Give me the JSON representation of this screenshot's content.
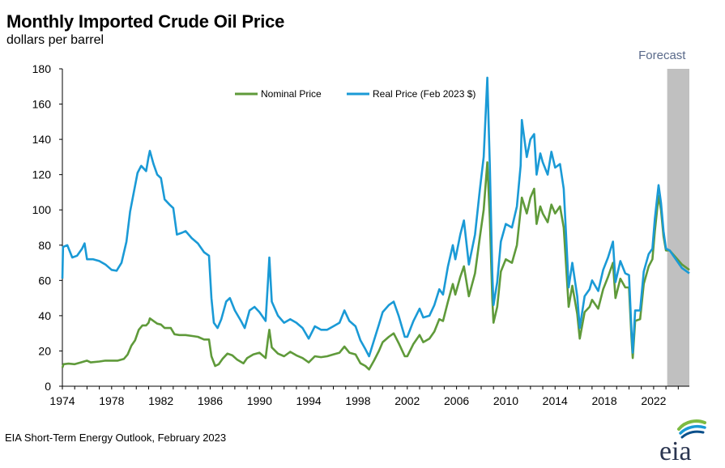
{
  "title": "Monthly Imported Crude Oil Price",
  "subtitle": "dollars per barrel",
  "source": "EIA Short-Term Energy Outlook, February 2023",
  "logo_text": "eia",
  "colors": {
    "nominal": "#5f9a3a",
    "real": "#1a9ad6",
    "forecast_band": "#c0c0c0",
    "axis": "#000000"
  },
  "chart_data": {
    "type": "line",
    "title": "Monthly Imported Crude Oil Price",
    "ylabel": "dollars per barrel",
    "xlabel": "",
    "xlim": [
      1974,
      2024.9
    ],
    "ylim": [
      0,
      180
    ],
    "yticks": [
      0,
      20,
      40,
      60,
      80,
      100,
      120,
      140,
      160,
      180
    ],
    "xticks": [
      1974,
      1978,
      1982,
      1986,
      1990,
      1994,
      1998,
      2002,
      2006,
      2010,
      2014,
      2018,
      2022
    ],
    "grid": false,
    "legend_position": "top-center",
    "forecast": {
      "label": "Forecast",
      "start": 2023.1,
      "end": 2024.9
    },
    "series": [
      {
        "name": "Nominal Price",
        "color": "#5f9a3a",
        "points": [
          [
            1974.0,
            10.5
          ],
          [
            1974.1,
            12.5
          ],
          [
            1974.5,
            12.8
          ],
          [
            1975.0,
            12.5
          ],
          [
            1975.5,
            13.5
          ],
          [
            1976.0,
            14.5
          ],
          [
            1976.3,
            13.5
          ],
          [
            1977.0,
            14.0
          ],
          [
            1977.5,
            14.5
          ],
          [
            1978.0,
            14.5
          ],
          [
            1978.5,
            14.5
          ],
          [
            1979.0,
            15.5
          ],
          [
            1979.3,
            18.0
          ],
          [
            1979.6,
            23.0
          ],
          [
            1979.9,
            26.0
          ],
          [
            1980.2,
            32.0
          ],
          [
            1980.5,
            34.5
          ],
          [
            1980.8,
            34.5
          ],
          [
            1981.0,
            36.0
          ],
          [
            1981.1,
            38.5
          ],
          [
            1981.4,
            37.0
          ],
          [
            1981.7,
            35.5
          ],
          [
            1982.0,
            35.0
          ],
          [
            1982.3,
            33.0
          ],
          [
            1982.8,
            33.0
          ],
          [
            1983.1,
            29.5
          ],
          [
            1983.5,
            29.0
          ],
          [
            1984.0,
            29.0
          ],
          [
            1984.5,
            28.5
          ],
          [
            1985.0,
            28.0
          ],
          [
            1985.5,
            26.5
          ],
          [
            1985.9,
            26.5
          ],
          [
            1986.1,
            17.0
          ],
          [
            1986.4,
            11.5
          ],
          [
            1986.7,
            12.5
          ],
          [
            1987.0,
            15.5
          ],
          [
            1987.4,
            18.5
          ],
          [
            1987.8,
            17.5
          ],
          [
            1988.2,
            15.0
          ],
          [
            1988.7,
            13.0
          ],
          [
            1989.0,
            16.0
          ],
          [
            1989.5,
            18.0
          ],
          [
            1990.0,
            19.0
          ],
          [
            1990.5,
            16.0
          ],
          [
            1990.7,
            27.0
          ],
          [
            1990.8,
            32.0
          ],
          [
            1991.0,
            22.0
          ],
          [
            1991.5,
            18.5
          ],
          [
            1992.0,
            17.0
          ],
          [
            1992.5,
            19.5
          ],
          [
            1993.0,
            17.5
          ],
          [
            1993.5,
            16.0
          ],
          [
            1994.0,
            13.5
          ],
          [
            1994.5,
            17.0
          ],
          [
            1995.0,
            16.5
          ],
          [
            1995.5,
            17.0
          ],
          [
            1996.0,
            18.0
          ],
          [
            1996.5,
            19.0
          ],
          [
            1996.9,
            22.5
          ],
          [
            1997.3,
            19.0
          ],
          [
            1997.8,
            18.0
          ],
          [
            1998.2,
            13.0
          ],
          [
            1998.6,
            11.5
          ],
          [
            1998.9,
            9.5
          ],
          [
            1999.3,
            14.5
          ],
          [
            1999.7,
            20.0
          ],
          [
            2000.0,
            25.0
          ],
          [
            2000.5,
            28.0
          ],
          [
            2000.9,
            30.0
          ],
          [
            2001.3,
            24.5
          ],
          [
            2001.8,
            17.0
          ],
          [
            2002.0,
            17.0
          ],
          [
            2002.5,
            24.0
          ],
          [
            2003.0,
            29.0
          ],
          [
            2003.3,
            25.0
          ],
          [
            2003.8,
            27.0
          ],
          [
            2004.2,
            31.0
          ],
          [
            2004.6,
            38.0
          ],
          [
            2004.9,
            37.0
          ],
          [
            2005.3,
            48.0
          ],
          [
            2005.7,
            58.0
          ],
          [
            2005.9,
            52.0
          ],
          [
            2006.3,
            62.0
          ],
          [
            2006.6,
            68.0
          ],
          [
            2007.0,
            51.0
          ],
          [
            2007.5,
            64.0
          ],
          [
            2007.9,
            85.0
          ],
          [
            2008.2,
            100.0
          ],
          [
            2008.5,
            127.0
          ],
          [
            2008.7,
            95.0
          ],
          [
            2008.9,
            50.0
          ],
          [
            2009.0,
            36.0
          ],
          [
            2009.3,
            45.0
          ],
          [
            2009.6,
            65.0
          ],
          [
            2010.0,
            72.0
          ],
          [
            2010.5,
            70.0
          ],
          [
            2010.9,
            80.0
          ],
          [
            2011.2,
            100.0
          ],
          [
            2011.3,
            107.0
          ],
          [
            2011.7,
            98.0
          ],
          [
            2012.0,
            107.0
          ],
          [
            2012.3,
            112.0
          ],
          [
            2012.5,
            92.0
          ],
          [
            2012.8,
            102.0
          ],
          [
            2013.0,
            98.0
          ],
          [
            2013.4,
            93.0
          ],
          [
            2013.7,
            103.0
          ],
          [
            2014.0,
            98.0
          ],
          [
            2014.4,
            102.0
          ],
          [
            2014.7,
            90.0
          ],
          [
            2014.9,
            68.0
          ],
          [
            2015.1,
            45.0
          ],
          [
            2015.4,
            57.0
          ],
          [
            2015.8,
            41.0
          ],
          [
            2016.0,
            27.0
          ],
          [
            2016.4,
            42.0
          ],
          [
            2016.8,
            45.0
          ],
          [
            2017.0,
            49.0
          ],
          [
            2017.5,
            44.0
          ],
          [
            2017.9,
            55.0
          ],
          [
            2018.3,
            62.0
          ],
          [
            2018.7,
            70.0
          ],
          [
            2018.9,
            50.0
          ],
          [
            2019.3,
            61.0
          ],
          [
            2019.7,
            56.0
          ],
          [
            2020.0,
            56.0
          ],
          [
            2020.2,
            28.0
          ],
          [
            2020.3,
            16.0
          ],
          [
            2020.5,
            37.0
          ],
          [
            2020.9,
            38.0
          ],
          [
            2021.2,
            58.0
          ],
          [
            2021.6,
            68.0
          ],
          [
            2021.9,
            72.0
          ],
          [
            2022.1,
            88.0
          ],
          [
            2022.4,
            108.0
          ],
          [
            2022.6,
            100.0
          ],
          [
            2022.8,
            85.0
          ],
          [
            2023.0,
            77.0
          ],
          [
            2023.3,
            77.0
          ],
          [
            2023.8,
            73.0
          ],
          [
            2024.3,
            69.0
          ],
          [
            2024.9,
            66.0
          ]
        ]
      },
      {
        "name": "Real Price (Feb 2023 $)",
        "color": "#1a9ad6",
        "points": [
          [
            1974.0,
            61.0
          ],
          [
            1974.05,
            79.0
          ],
          [
            1974.4,
            80.0
          ],
          [
            1974.8,
            73.0
          ],
          [
            1975.2,
            74.0
          ],
          [
            1975.6,
            78.0
          ],
          [
            1975.8,
            81.0
          ],
          [
            1976.0,
            72.0
          ],
          [
            1976.5,
            72.0
          ],
          [
            1977.0,
            71.0
          ],
          [
            1977.5,
            69.0
          ],
          [
            1978.0,
            66.0
          ],
          [
            1978.4,
            65.5
          ],
          [
            1978.8,
            70.0
          ],
          [
            1979.2,
            82.0
          ],
          [
            1979.5,
            99.0
          ],
          [
            1979.8,
            110.0
          ],
          [
            1980.1,
            121.0
          ],
          [
            1980.4,
            125.0
          ],
          [
            1980.8,
            122.0
          ],
          [
            1981.0,
            130.0
          ],
          [
            1981.1,
            133.5
          ],
          [
            1981.4,
            126.0
          ],
          [
            1981.7,
            120.0
          ],
          [
            1982.0,
            118.0
          ],
          [
            1982.3,
            106.0
          ],
          [
            1982.7,
            103.0
          ],
          [
            1983.0,
            101.0
          ],
          [
            1983.3,
            86.0
          ],
          [
            1983.7,
            87.0
          ],
          [
            1984.0,
            88.0
          ],
          [
            1984.5,
            84.0
          ],
          [
            1985.0,
            81.0
          ],
          [
            1985.5,
            76.0
          ],
          [
            1985.9,
            74.0
          ],
          [
            1986.1,
            50.0
          ],
          [
            1986.3,
            36.0
          ],
          [
            1986.6,
            33.0
          ],
          [
            1986.9,
            38.0
          ],
          [
            1987.3,
            48.0
          ],
          [
            1987.6,
            50.0
          ],
          [
            1988.0,
            43.0
          ],
          [
            1988.5,
            37.0
          ],
          [
            1988.8,
            33.0
          ],
          [
            1989.2,
            43.0
          ],
          [
            1989.6,
            45.0
          ],
          [
            1990.0,
            42.0
          ],
          [
            1990.5,
            37.0
          ],
          [
            1990.7,
            60.0
          ],
          [
            1990.8,
            73.0
          ],
          [
            1991.0,
            48.0
          ],
          [
            1991.5,
            40.0
          ],
          [
            1992.0,
            36.0
          ],
          [
            1992.5,
            38.0
          ],
          [
            1993.0,
            36.0
          ],
          [
            1993.5,
            33.0
          ],
          [
            1994.0,
            27.0
          ],
          [
            1994.5,
            34.0
          ],
          [
            1995.0,
            32.0
          ],
          [
            1995.5,
            32.0
          ],
          [
            1996.0,
            34.0
          ],
          [
            1996.5,
            36.0
          ],
          [
            1996.9,
            43.0
          ],
          [
            1997.3,
            37.0
          ],
          [
            1997.8,
            34.0
          ],
          [
            1998.2,
            26.0
          ],
          [
            1998.6,
            21.0
          ],
          [
            1998.9,
            17.0
          ],
          [
            1999.3,
            26.0
          ],
          [
            1999.7,
            35.0
          ],
          [
            2000.0,
            42.0
          ],
          [
            2000.5,
            46.0
          ],
          [
            2000.9,
            48.0
          ],
          [
            2001.3,
            40.0
          ],
          [
            2001.8,
            28.0
          ],
          [
            2002.0,
            28.0
          ],
          [
            2002.5,
            37.0
          ],
          [
            2003.0,
            44.0
          ],
          [
            2003.3,
            39.0
          ],
          [
            2003.8,
            40.0
          ],
          [
            2004.2,
            46.0
          ],
          [
            2004.6,
            55.0
          ],
          [
            2004.9,
            52.0
          ],
          [
            2005.3,
            68.0
          ],
          [
            2005.7,
            80.0
          ],
          [
            2005.9,
            72.0
          ],
          [
            2006.3,
            86.0
          ],
          [
            2006.6,
            94.0
          ],
          [
            2007.0,
            69.0
          ],
          [
            2007.5,
            86.0
          ],
          [
            2007.9,
            112.0
          ],
          [
            2008.2,
            130.0
          ],
          [
            2008.5,
            175.0
          ],
          [
            2008.7,
            125.0
          ],
          [
            2008.9,
            64.0
          ],
          [
            2009.0,
            46.0
          ],
          [
            2009.3,
            59.0
          ],
          [
            2009.6,
            82.0
          ],
          [
            2010.0,
            92.0
          ],
          [
            2010.5,
            90.0
          ],
          [
            2010.9,
            102.0
          ],
          [
            2011.2,
            125.0
          ],
          [
            2011.3,
            151.0
          ],
          [
            2011.7,
            130.0
          ],
          [
            2012.0,
            140.0
          ],
          [
            2012.3,
            143.0
          ],
          [
            2012.5,
            120.0
          ],
          [
            2012.8,
            132.0
          ],
          [
            2013.0,
            127.0
          ],
          [
            2013.4,
            120.0
          ],
          [
            2013.7,
            133.0
          ],
          [
            2014.0,
            124.0
          ],
          [
            2014.4,
            126.0
          ],
          [
            2014.7,
            112.0
          ],
          [
            2014.9,
            85.0
          ],
          [
            2015.1,
            56.0
          ],
          [
            2015.4,
            70.0
          ],
          [
            2015.8,
            51.0
          ],
          [
            2016.0,
            33.0
          ],
          [
            2016.4,
            51.0
          ],
          [
            2016.8,
            55.0
          ],
          [
            2017.0,
            60.0
          ],
          [
            2017.5,
            54.0
          ],
          [
            2017.9,
            66.0
          ],
          [
            2018.3,
            73.0
          ],
          [
            2018.7,
            82.0
          ],
          [
            2018.9,
            59.0
          ],
          [
            2019.3,
            71.0
          ],
          [
            2019.7,
            64.0
          ],
          [
            2020.0,
            63.0
          ],
          [
            2020.2,
            32.0
          ],
          [
            2020.3,
            19.0
          ],
          [
            2020.5,
            43.0
          ],
          [
            2020.9,
            43.0
          ],
          [
            2021.2,
            65.0
          ],
          [
            2021.6,
            75.0
          ],
          [
            2021.9,
            78.0
          ],
          [
            2022.1,
            95.0
          ],
          [
            2022.4,
            114.0
          ],
          [
            2022.6,
            104.0
          ],
          [
            2022.8,
            88.0
          ],
          [
            2023.0,
            78.0
          ],
          [
            2023.3,
            77.0
          ],
          [
            2023.8,
            72.0
          ],
          [
            2024.3,
            67.0
          ],
          [
            2024.9,
            64.0
          ]
        ]
      }
    ]
  }
}
